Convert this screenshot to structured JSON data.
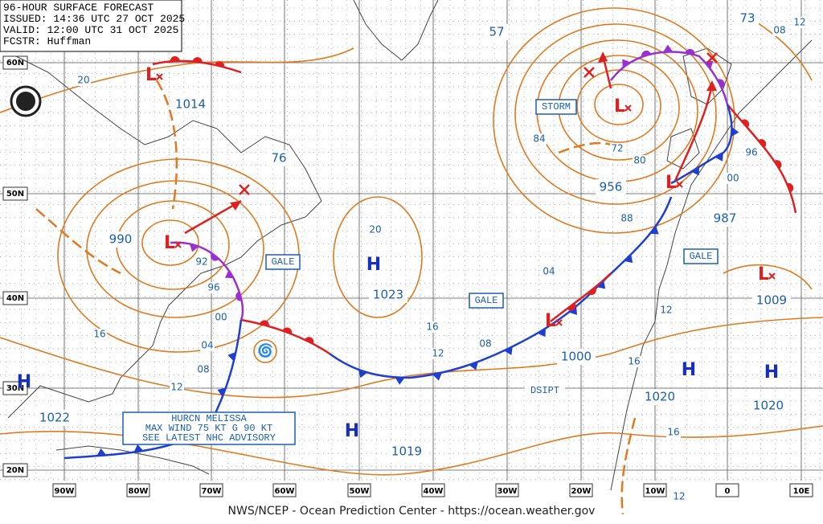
{
  "header": {
    "title": "96-HOUR SURFACE FORECAST",
    "issued": "ISSUED: 14:36 UTC 27 OCT 2025",
    "valid": "VALID:  12:00 UTC 31 OCT 2025",
    "forecaster": "FCSTR:  Huffman"
  },
  "footer": "NWS/NCEP - Ocean Prediction Center - https://ocean.weather.gov",
  "latitude_labels": [
    "60N",
    "50N",
    "40N",
    "30N",
    "20N"
  ],
  "longitude_labels": [
    "90W",
    "80W",
    "70W",
    "60W",
    "50W",
    "40W",
    "30W",
    "20W",
    "10W",
    "0",
    "10E"
  ],
  "pressure_labels": [
    "1014",
    "990",
    "76",
    "1023",
    "956",
    "987",
    "1000",
    "1020",
    "1020",
    "1009",
    "1022",
    "1019",
    "57",
    "73"
  ],
  "isobar_labels": [
    "20",
    "92",
    "96",
    "00",
    "04",
    "08",
    "12",
    "16",
    "20",
    "16",
    "12",
    "08",
    "04",
    "84",
    "72",
    "80",
    "88",
    "96",
    "00",
    "12",
    "16",
    "16",
    "12",
    "08",
    "12"
  ],
  "area_labels": [
    "GALE",
    "STORM",
    "GALE",
    "GALE",
    "DSIPT"
  ],
  "highs": [
    "H",
    "H",
    "H",
    "H",
    "H"
  ],
  "lows": [
    "L",
    "L",
    "L",
    "L",
    "L",
    "L"
  ],
  "hurricane_advisory": [
    "HURCN MELISSA",
    "MAX WIND 75 KT G 90 KT",
    "SEE LATEST NHC ADVISORY"
  ]
}
